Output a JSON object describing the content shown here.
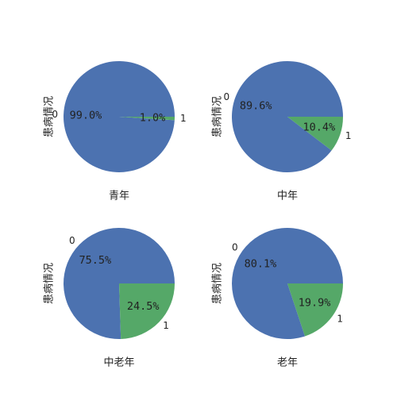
{
  "chart_data": [
    {
      "type": "pie",
      "xlabel": "青年",
      "ylabel": "患病情况",
      "categories": [
        "0",
        "1"
      ],
      "values": [
        99.0,
        1.0
      ],
      "labels": [
        "99.0%",
        "1.0%"
      ],
      "colors": [
        "#4c72b0",
        "#55a868"
      ]
    },
    {
      "type": "pie",
      "xlabel": "中年",
      "ylabel": "患病情况",
      "categories": [
        "0",
        "1"
      ],
      "values": [
        89.6,
        10.4
      ],
      "labels": [
        "89.6%",
        "10.4%"
      ],
      "colors": [
        "#4c72b0",
        "#55a868"
      ]
    },
    {
      "type": "pie",
      "xlabel": "中老年",
      "ylabel": "患病情况",
      "categories": [
        "0",
        "1"
      ],
      "values": [
        75.5,
        24.5
      ],
      "labels": [
        "75.5%",
        "24.5%"
      ],
      "colors": [
        "#4c72b0",
        "#55a868"
      ]
    },
    {
      "type": "pie",
      "xlabel": "老年",
      "ylabel": "患病情况",
      "categories": [
        "0",
        "1"
      ],
      "values": [
        80.1,
        19.9
      ],
      "labels": [
        "80.1%",
        "19.9%"
      ],
      "colors": [
        "#4c72b0",
        "#55a868"
      ]
    }
  ]
}
